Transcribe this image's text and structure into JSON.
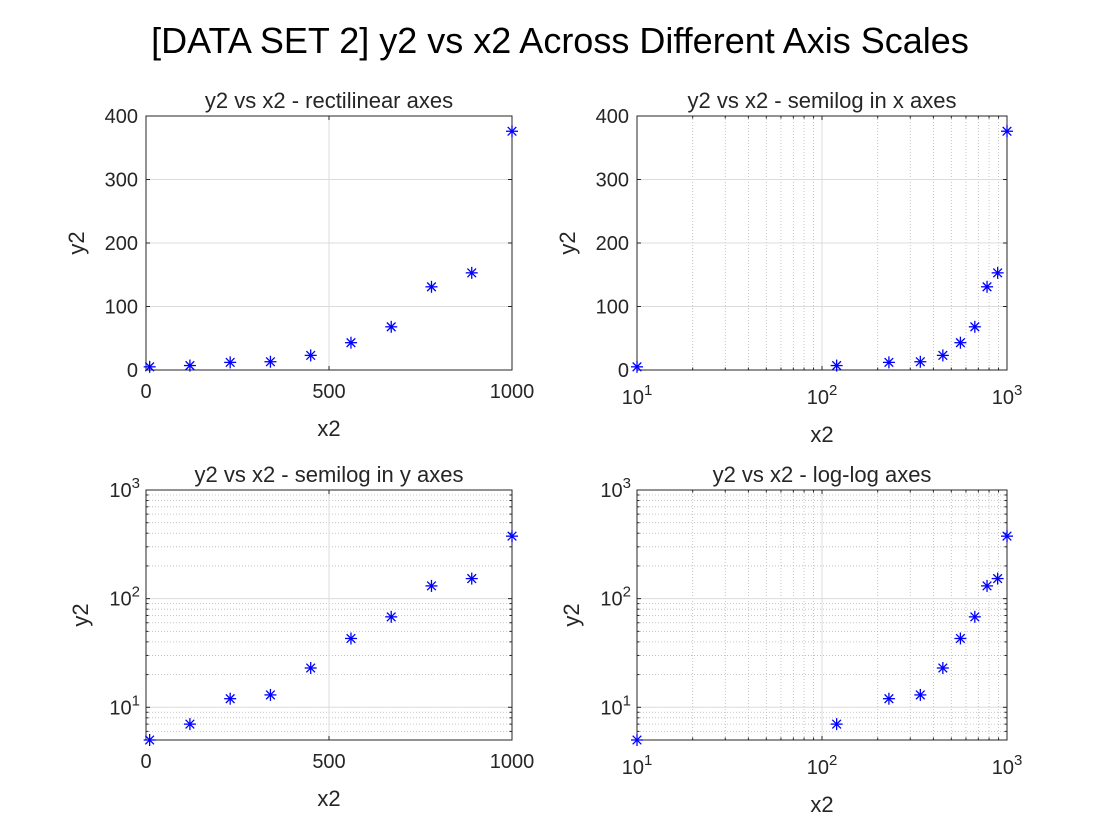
{
  "figure": {
    "title": "[DATA SET 2] y2 vs x2 Across Different Axis Scales",
    "marker_color": "#0000ff",
    "marker": "asterisk"
  },
  "chart_data": [
    {
      "type": "scatter",
      "title": "y2 vs x2 - rectilinear axes",
      "xlabel": "x2",
      "ylabel": "y2",
      "xscale": "linear",
      "yscale": "linear",
      "xlim": [
        0,
        1000
      ],
      "ylim": [
        0,
        400
      ],
      "xticks": [
        0,
        500,
        1000
      ],
      "xticklabels": [
        "0",
        "500",
        "1000"
      ],
      "yticks": [
        0,
        100,
        200,
        300,
        400
      ],
      "yticklabels": [
        "0",
        "100",
        "200",
        "300",
        "400"
      ],
      "grid": true,
      "series": [
        {
          "x": [
            10,
            120,
            230,
            340,
            450,
            560,
            670,
            780,
            890,
            1000
          ],
          "y": [
            5,
            7,
            12,
            13,
            23,
            43,
            68,
            131,
            153,
            376
          ]
        }
      ]
    },
    {
      "type": "scatter",
      "title": "y2 vs x2 - semilog in x axes",
      "xlabel": "x2",
      "ylabel": "y2",
      "xscale": "log",
      "yscale": "linear",
      "xlim": [
        10,
        1000
      ],
      "ylim": [
        0,
        400
      ],
      "xticks": [
        10,
        100,
        1000
      ],
      "xticklabels": [
        "10^1",
        "10^2",
        "10^3"
      ],
      "yticks": [
        0,
        100,
        200,
        300,
        400
      ],
      "yticklabels": [
        "0",
        "100",
        "200",
        "300",
        "400"
      ],
      "grid": true,
      "series": [
        {
          "x": [
            10,
            120,
            230,
            340,
            450,
            560,
            670,
            780,
            890,
            1000
          ],
          "y": [
            5,
            7,
            12,
            13,
            23,
            43,
            68,
            131,
            153,
            376
          ]
        }
      ]
    },
    {
      "type": "scatter",
      "title": "y2 vs x2 - semilog in y axes",
      "xlabel": "x2",
      "ylabel": "y2",
      "xscale": "linear",
      "yscale": "log",
      "xlim": [
        0,
        1000
      ],
      "ylim": [
        5,
        1000
      ],
      "xticks": [
        0,
        500,
        1000
      ],
      "xticklabels": [
        "0",
        "500",
        "1000"
      ],
      "yticks": [
        10,
        100,
        1000
      ],
      "yticklabels": [
        "10^1",
        "10^2",
        "10^3"
      ],
      "grid": true,
      "series": [
        {
          "x": [
            10,
            120,
            230,
            340,
            450,
            560,
            670,
            780,
            890,
            1000
          ],
          "y": [
            5,
            7,
            12,
            13,
            23,
            43,
            68,
            131,
            153,
            376
          ]
        }
      ]
    },
    {
      "type": "scatter",
      "title": "y2 vs x2 - log-log axes",
      "xlabel": "x2",
      "ylabel": "y2",
      "xscale": "log",
      "yscale": "log",
      "xlim": [
        10,
        1000
      ],
      "ylim": [
        5,
        1000
      ],
      "xticks": [
        10,
        100,
        1000
      ],
      "xticklabels": [
        "10^1",
        "10^2",
        "10^3"
      ],
      "yticks": [
        10,
        100,
        1000
      ],
      "yticklabels": [
        "10^1",
        "10^2",
        "10^3"
      ],
      "grid": true,
      "series": [
        {
          "x": [
            10,
            120,
            230,
            340,
            450,
            560,
            670,
            780,
            890,
            1000
          ],
          "y": [
            5,
            7,
            12,
            13,
            23,
            43,
            68,
            131,
            153,
            376
          ]
        }
      ]
    }
  ]
}
